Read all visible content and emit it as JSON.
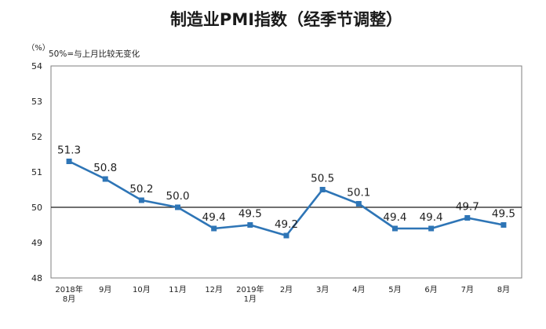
{
  "chart_data": {
    "type": "line",
    "title": "制造业PMI指数（经季节调整）",
    "ylabel": "（%）",
    "note": "50%=与上月比较无变化",
    "xlabel": "",
    "categories": [
      [
        "2018年",
        "8月"
      ],
      [
        "9月"
      ],
      [
        "10月"
      ],
      [
        "11月"
      ],
      [
        "12月"
      ],
      [
        "2019年",
        "1月"
      ],
      [
        "2月"
      ],
      [
        "3月"
      ],
      [
        "4月"
      ],
      [
        "5月"
      ],
      [
        "6月"
      ],
      [
        "7月"
      ],
      [
        "8月"
      ]
    ],
    "series": [
      {
        "values": [
          51.3,
          50.8,
          50.2,
          50.0,
          49.4,
          49.5,
          49.2,
          50.5,
          50.1,
          49.4,
          49.4,
          49.7,
          49.5
        ],
        "labels": [
          "51.3",
          "50.8",
          "50.2",
          "50.0",
          "49.4",
          "49.5",
          "49.2",
          "50.5",
          "50.1",
          "49.4",
          "49.4",
          "49.7",
          "49.5"
        ],
        "color": "#2e75b6"
      }
    ],
    "ylim": [
      48,
      54
    ],
    "yticks": [
      48,
      49,
      50,
      51,
      52,
      53,
      54
    ],
    "reference_line": 50,
    "grid": false,
    "legend": "none"
  }
}
